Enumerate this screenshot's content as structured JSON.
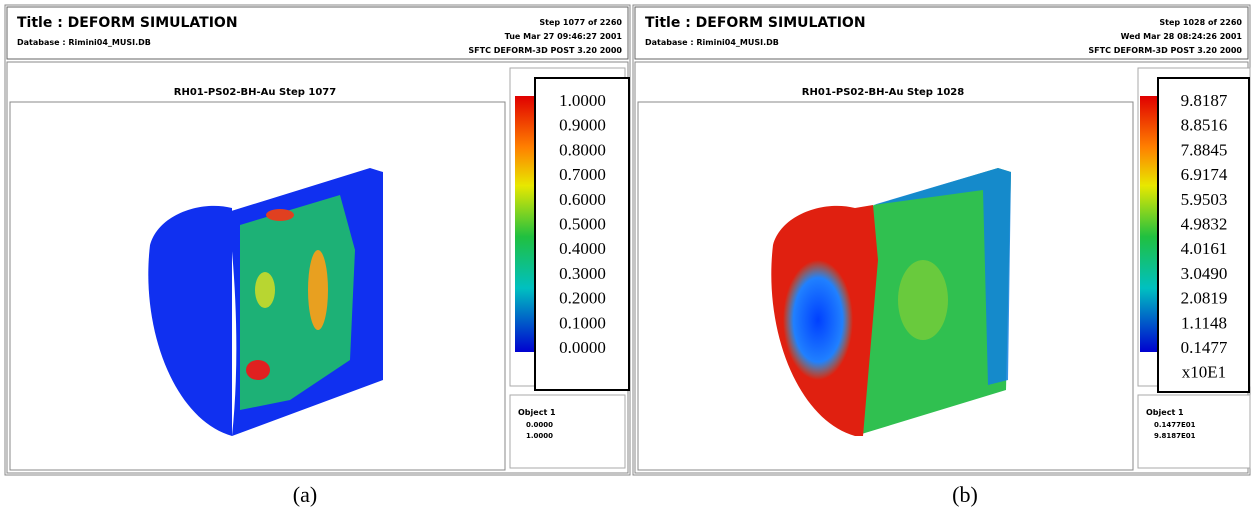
{
  "panels": [
    {
      "title": "Title : DEFORM SIMULATION",
      "database": "Database : Rimini04_MUSI.DB",
      "step": "Step 1077 of 2260",
      "date": "Tue Mar 27 09:46:27 2001",
      "software": "SFTC DEFORM-3D POST 3.20 2000",
      "plot_title": "RH01-PS02-BH-Au Step 1077",
      "legend": [
        "1.0000",
        "0.9000",
        "0.8000",
        "0.7000",
        "0.6000",
        "0.5000",
        "0.4000",
        "0.3000",
        "0.2000",
        "0.1000",
        "0.0000"
      ],
      "object": {
        "label": "Object 1",
        "min": "0.0000",
        "max": "1.0000"
      },
      "caption": "(a)"
    },
    {
      "title": "Title : DEFORM SIMULATION",
      "database": "Database : Rimini04_MUSI.DB",
      "step": "Step 1028 of 2260",
      "date": "Wed Mar 28 08:24:26 2001",
      "software": "SFTC DEFORM-3D POST 3.20 2000",
      "plot_title": "RH01-PS02-BH-Au Step 1028",
      "legend": [
        "9.8187",
        "8.8516",
        "7.8845",
        "6.9174",
        "5.9503",
        "4.9832",
        "4.0161",
        "3.0490",
        "2.0819",
        "1.1148",
        "0.1477",
        "x10E1"
      ],
      "object": {
        "label": "Object 1",
        "min": "0.1477E01",
        "max": "9.8187E01"
      },
      "caption": "(b)"
    }
  ]
}
